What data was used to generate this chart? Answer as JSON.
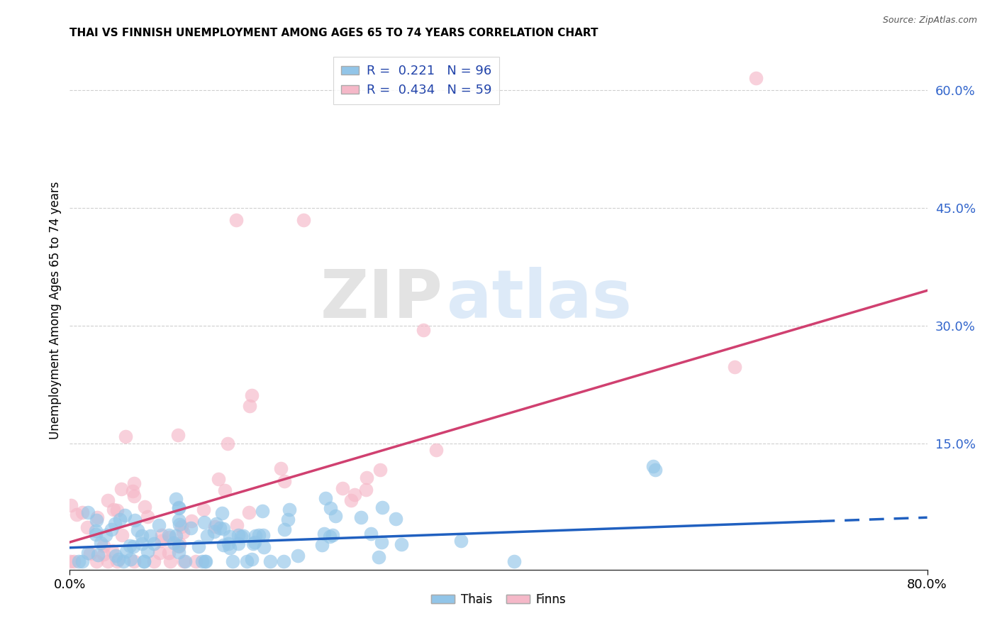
{
  "title": "THAI VS FINNISH UNEMPLOYMENT AMONG AGES 65 TO 74 YEARS CORRELATION CHART",
  "source": "Source: ZipAtlas.com",
  "ylabel": "Unemployment Among Ages 65 to 74 years",
  "xlim": [
    0.0,
    0.8
  ],
  "ylim": [
    -0.01,
    0.65
  ],
  "xticks": [
    0.0,
    0.8
  ],
  "xticklabels": [
    "0.0%",
    "80.0%"
  ],
  "ytick_positions": [
    0.15,
    0.3,
    0.45,
    0.6
  ],
  "ytick_labels": [
    "15.0%",
    "30.0%",
    "45.0%",
    "60.0%"
  ],
  "thai_color": "#92c5e8",
  "finn_color": "#f5b8c8",
  "thai_line_color": "#2060c0",
  "finn_line_color": "#d04070",
  "thai_R": 0.221,
  "thai_N": 96,
  "finn_R": 0.434,
  "finn_N": 59,
  "thai_intercept": 0.018,
  "thai_slope": 0.048,
  "finn_intercept": 0.025,
  "finn_slope": 0.4,
  "dashed_threshold": 0.7,
  "watermark_zip": "ZIP",
  "watermark_atlas": "atlas",
  "seed_thai": 42,
  "seed_finn": 77
}
